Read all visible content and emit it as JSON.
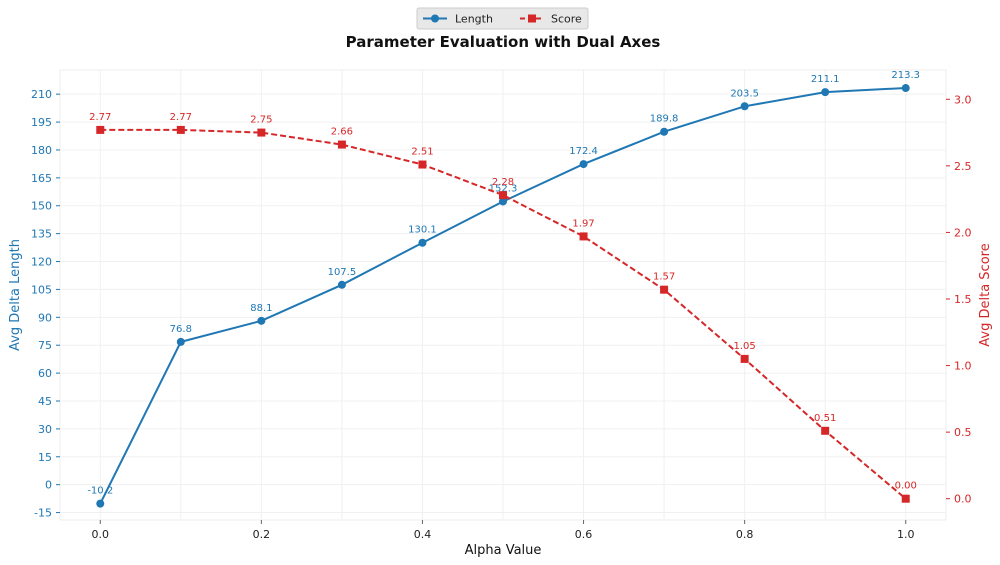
{
  "chart_data": {
    "type": "line",
    "title": "Parameter Evaluation with Dual Axes",
    "xlabel": "Alpha Value",
    "ylabel_left": "Avg Delta Length",
    "ylabel_right": "Avg Delta Score",
    "x": [
      0.0,
      0.1,
      0.2,
      0.3,
      0.4,
      0.5,
      0.6,
      0.7,
      0.8,
      0.9,
      1.0
    ],
    "x_ticks": [
      "0.0",
      "0.2",
      "0.4",
      "0.6",
      "0.8",
      "1.0"
    ],
    "x_tick_values": [
      0.0,
      0.2,
      0.4,
      0.6,
      0.8,
      1.0
    ],
    "xlim": [
      -0.05,
      1.05
    ],
    "ylim_left": [
      -19,
      223
    ],
    "ylim_right": [
      -0.16,
      3.22
    ],
    "y_ticks_left": [
      "-15",
      "0",
      "15",
      "30",
      "45",
      "60",
      "75",
      "90",
      "105",
      "120",
      "135",
      "150",
      "165",
      "180",
      "195",
      "210"
    ],
    "y_tick_values_left": [
      -15,
      0,
      15,
      30,
      45,
      60,
      75,
      90,
      105,
      120,
      135,
      150,
      165,
      180,
      195,
      210
    ],
    "y_ticks_right": [
      "0.0",
      "0.5",
      "1.0",
      "1.5",
      "2.0",
      "2.5",
      "3.0"
    ],
    "y_tick_values_right": [
      0.0,
      0.5,
      1.0,
      1.5,
      2.0,
      2.5,
      3.0
    ],
    "grid": true,
    "legend_position": "top-center",
    "series": [
      {
        "name": "Length",
        "axis": "left",
        "color": "#1f77b4",
        "marker": "circle",
        "line_style": "solid",
        "values": [
          -10.2,
          76.8,
          88.1,
          107.5,
          130.1,
          152.3,
          172.4,
          189.8,
          203.5,
          211.1,
          213.3
        ],
        "labels": [
          "-10.2",
          "76.8",
          "88.1",
          "107.5",
          "130.1",
          "152.3",
          "172.4",
          "189.8",
          "203.5",
          "211.1",
          "213.3"
        ]
      },
      {
        "name": "Score",
        "axis": "right",
        "color": "#d62728",
        "marker": "square",
        "line_style": "dashed",
        "values": [
          2.77,
          2.77,
          2.75,
          2.66,
          2.51,
          2.28,
          1.97,
          1.57,
          1.05,
          0.51,
          0.0
        ],
        "labels": [
          "2.77",
          "2.77",
          "2.75",
          "2.66",
          "2.51",
          "2.28",
          "1.97",
          "1.57",
          "1.05",
          "0.51",
          "0.00"
        ]
      }
    ]
  }
}
